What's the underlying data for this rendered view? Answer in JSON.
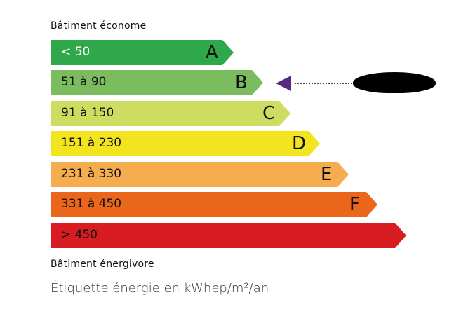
{
  "top_label": "Bâtiment économe",
  "bottom_label": "Bâtiment énergivore",
  "caption": "Étiquette énergie en kWhep/m²/an",
  "classes": [
    {
      "letter": "A",
      "range": "< 50",
      "color": "#2ea84a"
    },
    {
      "letter": "B",
      "range": "51 à 90",
      "color": "#7bbd5e"
    },
    {
      "letter": "C",
      "range": "91 à 150",
      "color": "#cfdc62"
    },
    {
      "letter": "D",
      "range": "151 à 230",
      "color": "#f2e41e"
    },
    {
      "letter": "E",
      "range": "231 à 330",
      "color": "#f5ad4f"
    },
    {
      "letter": "F",
      "range": "331 à 450",
      "color": "#e9661b"
    },
    {
      "letter": "",
      "range": "> 450",
      "color": "#d91c22"
    }
  ],
  "indicator": {
    "class": "B",
    "color": "#5a2a7e",
    "value_redacted": true
  }
}
